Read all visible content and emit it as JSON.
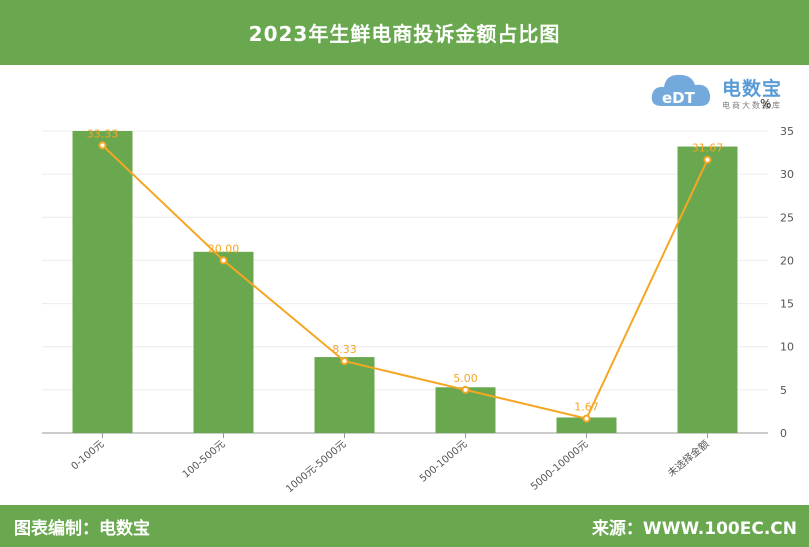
{
  "header": {
    "title": "2023年生鲜电商投诉金额占比图"
  },
  "logo": {
    "mark": "eDT",
    "brand": "电数宝",
    "sub": "电商大数据库",
    "percent": "%"
  },
  "footer": {
    "left": "图表编制：电数宝",
    "right": "来源：WWW.100EC.CN"
  },
  "colors": {
    "bar": "#6aa84f",
    "line": "#f5a623",
    "header": "#6aa84f",
    "logo": "#5b9bd5"
  },
  "chart_data": {
    "type": "bar",
    "categories": [
      "0-100元",
      "100-500元",
      "1000元-5000元",
      "500-1000元",
      "5000-10000元",
      "未选择金额"
    ],
    "series": [
      {
        "type": "bar",
        "values": [
          35,
          21,
          8.8,
          5.3,
          1.8,
          33.2
        ]
      },
      {
        "type": "line",
        "values": [
          33.33,
          20.0,
          8.33,
          5.0,
          1.67,
          31.67
        ]
      }
    ],
    "data_labels": [
      "33.33",
      "20.00",
      "8.33",
      "5.00",
      "1.67",
      "31.67"
    ],
    "yaxis": {
      "position": "right",
      "ticks": [
        0,
        5,
        10,
        15,
        20,
        25,
        30,
        35
      ],
      "ylim": [
        0,
        35
      ]
    },
    "grid": true,
    "legend": "none"
  }
}
